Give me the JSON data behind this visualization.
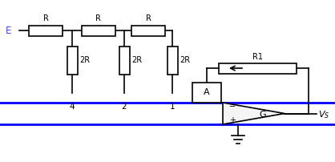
{
  "fig_width": 4.18,
  "fig_height": 2.02,
  "dpi": 100,
  "bg_color": "#ffffff",
  "blue_line_color": "#0000ff",
  "black_color": "#000000",
  "label_E_color": "#4444ff",
  "E_label": "E",
  "R_labels": [
    "R",
    "R",
    "R"
  ],
  "R2_labels": [
    "2R",
    "2R",
    "2R"
  ],
  "node_labels": [
    "4",
    "2",
    "1"
  ],
  "R1_label": "R1",
  "A_label": "A",
  "G_label": "G",
  "Vs_label": "$V_S$",
  "minus_label": "−",
  "plus_label": "+"
}
